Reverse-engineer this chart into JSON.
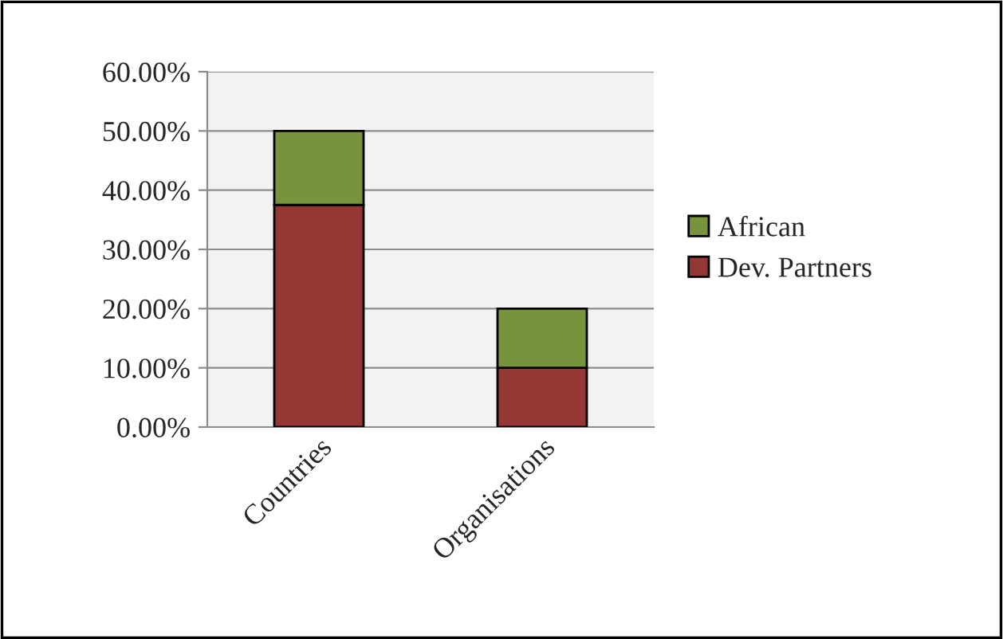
{
  "chart_data": {
    "type": "bar",
    "stacked": true,
    "categories": [
      "Countries",
      "Organisations"
    ],
    "series": [
      {
        "name": "Dev. Partners",
        "color": "#953735",
        "values": [
          37.5,
          10
        ]
      },
      {
        "name": "African",
        "color": "#77933c",
        "values": [
          12.5,
          10
        ]
      }
    ],
    "ylim": [
      0,
      60
    ],
    "yticks": [
      {
        "value": 0,
        "label": "0.00%"
      },
      {
        "value": 10,
        "label": "10.00%"
      },
      {
        "value": 20,
        "label": "20.00%"
      },
      {
        "value": 30,
        "label": "30.00%"
      },
      {
        "value": 40,
        "label": "40.00%"
      },
      {
        "value": 50,
        "label": "50.00%"
      },
      {
        "value": 60,
        "label": "60.00%"
      }
    ],
    "grid": "y",
    "legend": "right"
  }
}
